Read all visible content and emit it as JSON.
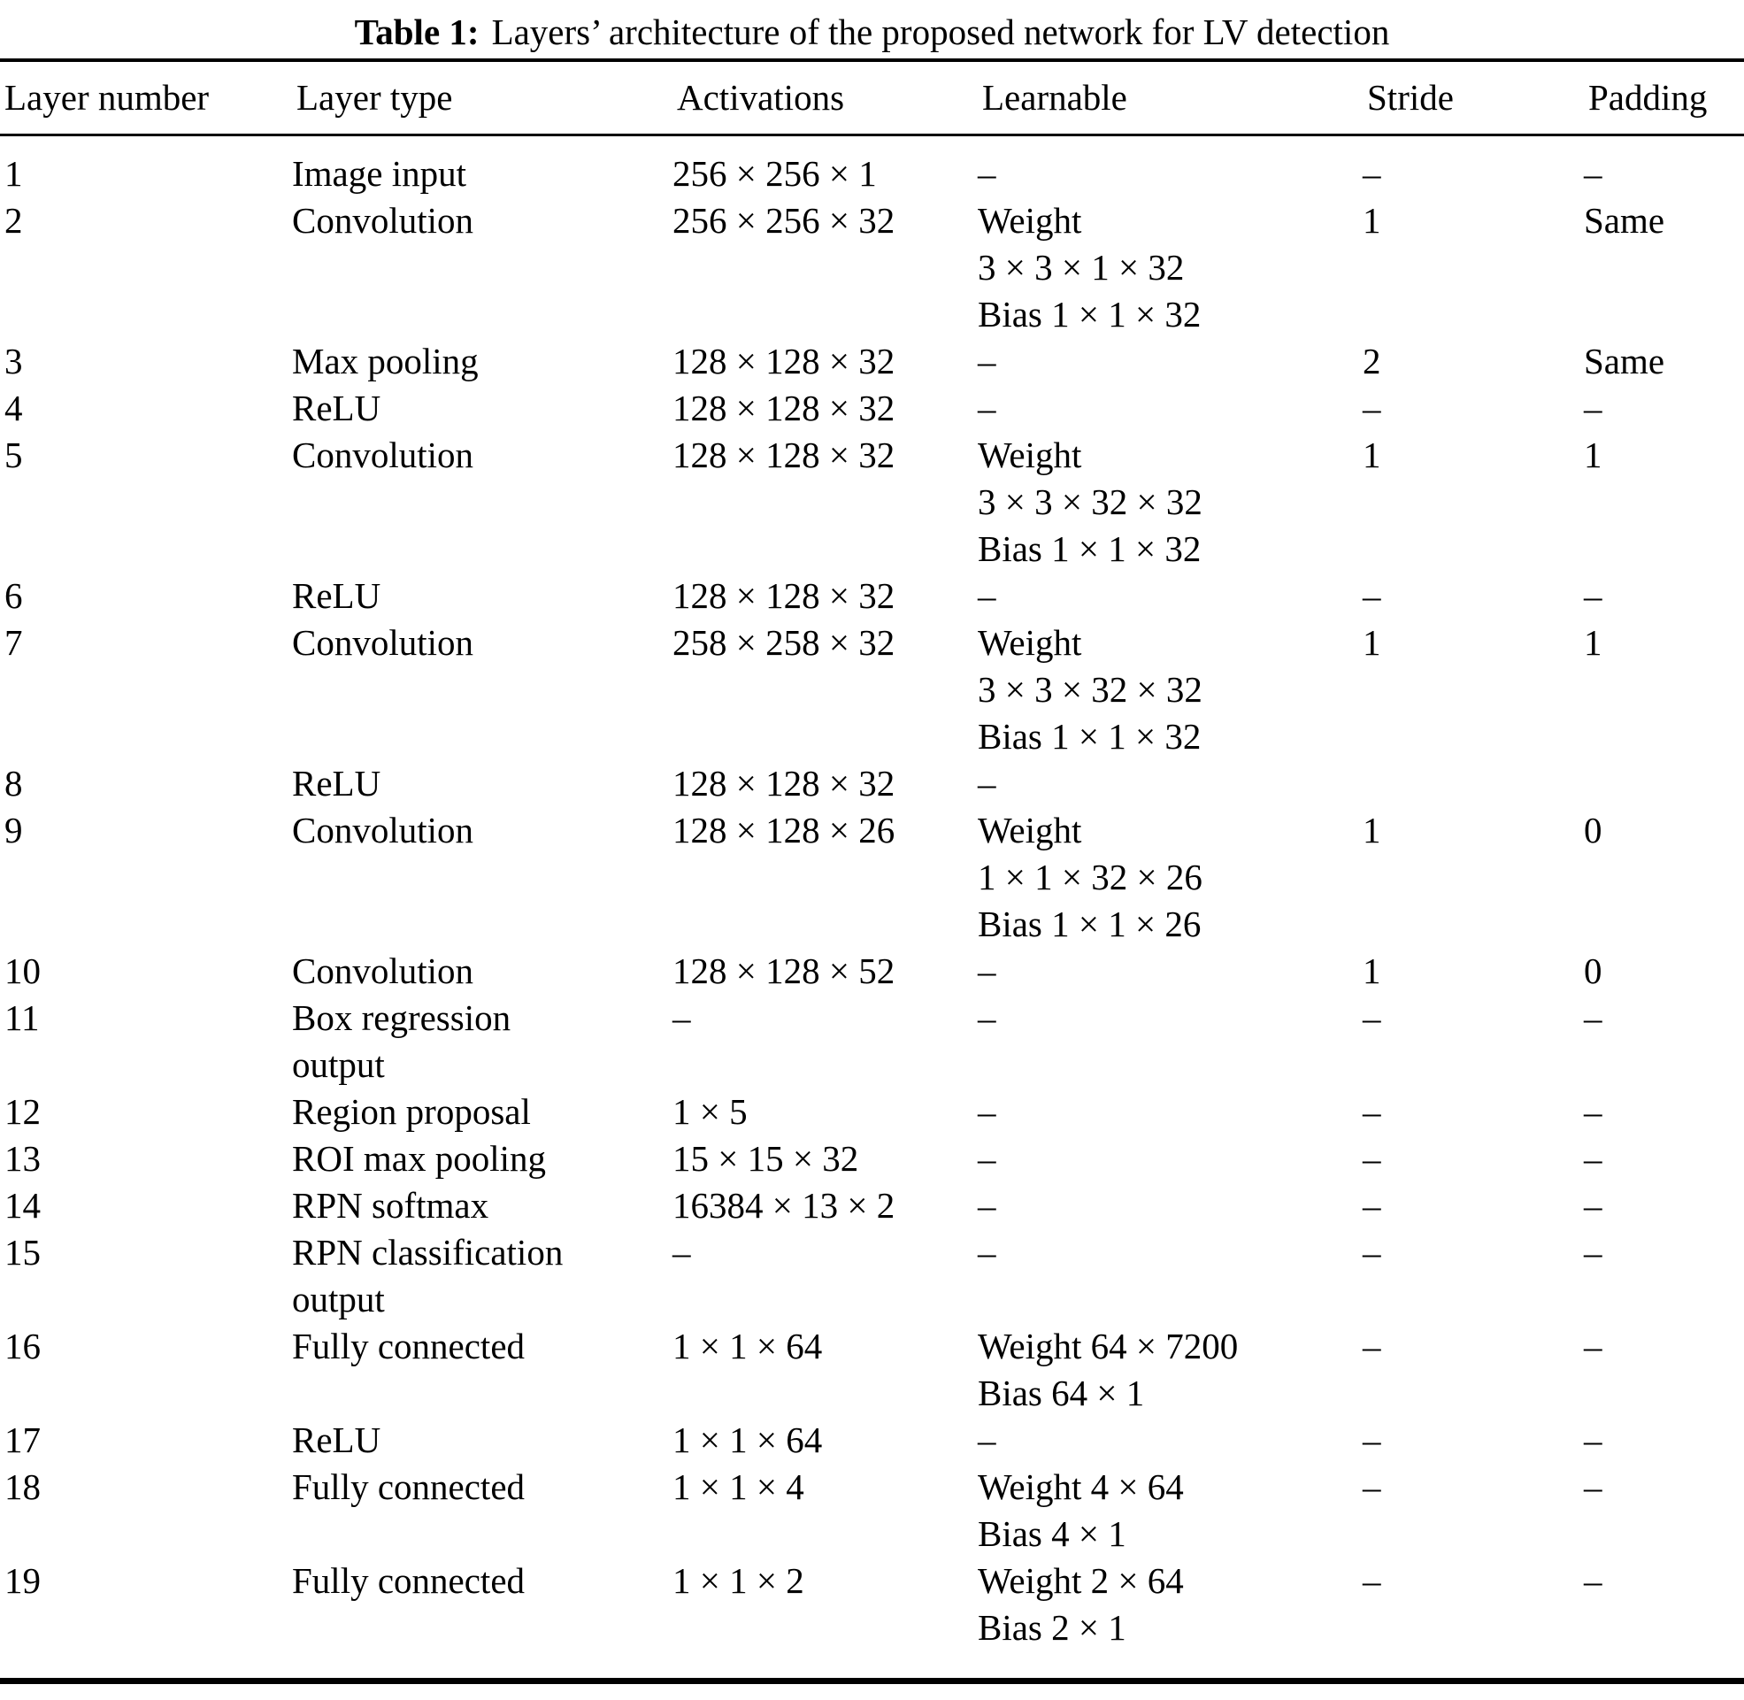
{
  "title": {
    "label": "Table 1:",
    "text": "Layers’ architecture of the proposed network for LV detection"
  },
  "columns": [
    "Layer number",
    "Layer type",
    "Activations",
    "Learnable",
    "Stride",
    "Padding"
  ],
  "rows": [
    {
      "number": "1",
      "type": [
        "Image input"
      ],
      "activations": [
        "256 × 256 × 1"
      ],
      "learnable": [
        "–"
      ],
      "stride": "–",
      "padding": "–"
    },
    {
      "number": "2",
      "type": [
        "Convolution"
      ],
      "activations": [
        "256 × 256 × 32"
      ],
      "learnable": [
        "Weight",
        "3 × 3 × 1 × 32",
        "Bias 1 × 1 × 32"
      ],
      "stride": "1",
      "padding": "Same"
    },
    {
      "number": "3",
      "type": [
        "Max pooling"
      ],
      "activations": [
        "128 × 128 × 32"
      ],
      "learnable": [
        "–"
      ],
      "stride": "2",
      "padding": "Same"
    },
    {
      "number": "4",
      "type": [
        "ReLU"
      ],
      "activations": [
        "128 × 128 × 32"
      ],
      "learnable": [
        "–"
      ],
      "stride": "–",
      "padding": "–"
    },
    {
      "number": "5",
      "type": [
        "Convolution"
      ],
      "activations": [
        "128 × 128 × 32"
      ],
      "learnable": [
        "Weight",
        "3 × 3 × 32 × 32",
        "Bias 1 × 1 × 32"
      ],
      "stride": "1",
      "padding": "1"
    },
    {
      "number": "6",
      "type": [
        "ReLU"
      ],
      "activations": [
        "128 × 128 × 32"
      ],
      "learnable": [
        "–"
      ],
      "stride": "–",
      "padding": "–"
    },
    {
      "number": "7",
      "type": [
        "Convolution"
      ],
      "activations": [
        "258 × 258 × 32"
      ],
      "learnable": [
        "Weight",
        "3 × 3 × 32 × 32",
        "Bias 1 × 1 × 32"
      ],
      "stride": "1",
      "padding": "1"
    },
    {
      "number": "8",
      "type": [
        "ReLU"
      ],
      "activations": [
        "128 × 128 × 32"
      ],
      "learnable": [
        "–"
      ],
      "stride": "",
      "padding": ""
    },
    {
      "number": "9",
      "type": [
        "Convolution"
      ],
      "activations": [
        "128 × 128 × 26"
      ],
      "learnable": [
        "Weight",
        "1 × 1 × 32 × 26",
        "Bias 1 × 1 × 26"
      ],
      "stride": "1",
      "padding": "0"
    },
    {
      "number": "10",
      "type": [
        "Convolution"
      ],
      "activations": [
        "128 × 128 × 52"
      ],
      "learnable": [
        "–"
      ],
      "stride": "1",
      "padding": "0"
    },
    {
      "number": "11",
      "type": [
        "Box regression",
        "output"
      ],
      "activations": [
        "–"
      ],
      "learnable": [
        "–"
      ],
      "stride": "–",
      "padding": "–"
    },
    {
      "number": "12",
      "type": [
        "Region proposal"
      ],
      "activations": [
        "1 × 5"
      ],
      "learnable": [
        "–"
      ],
      "stride": "–",
      "padding": "–"
    },
    {
      "number": "13",
      "type": [
        "ROI max pooling"
      ],
      "activations": [
        "15 × 15 × 32"
      ],
      "learnable": [
        "–"
      ],
      "stride": "–",
      "padding": "–"
    },
    {
      "number": "14",
      "type": [
        "RPN softmax"
      ],
      "activations": [
        "16384 × 13 × 2"
      ],
      "learnable": [
        "–"
      ],
      "stride": "–",
      "padding": "–"
    },
    {
      "number": "15",
      "type": [
        "RPN classification",
        "output"
      ],
      "activations": [
        "–"
      ],
      "learnable": [
        "–"
      ],
      "stride": "–",
      "padding": "–"
    },
    {
      "number": "16",
      "type": [
        "Fully connected"
      ],
      "activations": [
        "1 × 1 × 64"
      ],
      "learnable": [
        "Weight 64 × 7200",
        "Bias 64 × 1"
      ],
      "stride": "–",
      "padding": "–"
    },
    {
      "number": "17",
      "type": [
        "ReLU"
      ],
      "activations": [
        "1 × 1 × 64"
      ],
      "learnable": [
        "–"
      ],
      "stride": "–",
      "padding": "–"
    },
    {
      "number": "18",
      "type": [
        "Fully connected"
      ],
      "activations": [
        "1 × 1 × 4"
      ],
      "learnable": [
        "Weight 4 × 64",
        "Bias 4 × 1"
      ],
      "stride": "–",
      "padding": "–"
    },
    {
      "number": "19",
      "type": [
        "Fully connected"
      ],
      "activations": [
        "1 × 1 × 2"
      ],
      "learnable": [
        "Weight 2 × 64",
        "Bias 2 × 1"
      ],
      "stride": "–",
      "padding": "–"
    }
  ]
}
